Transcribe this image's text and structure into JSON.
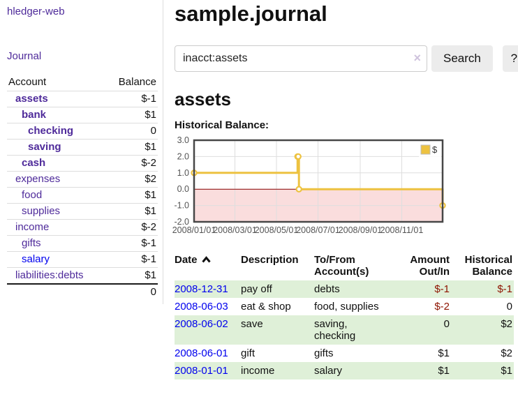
{
  "app": {
    "brand": "hledger-web",
    "nav": {
      "journal": "Journal"
    }
  },
  "sidebar": {
    "headers": {
      "account": "Account",
      "balance": "Balance"
    },
    "accounts": [
      {
        "name": "assets",
        "indent": 0,
        "bold": true,
        "balance": "$-1",
        "balance_color": "negative"
      },
      {
        "name": "bank",
        "indent": 1,
        "bold": true,
        "balance": "$1",
        "balance_color": "normal"
      },
      {
        "name": "checking",
        "indent": 2,
        "bold": true,
        "balance": "0",
        "balance_color": "normal"
      },
      {
        "name": "saving",
        "indent": 2,
        "bold": true,
        "balance": "$1",
        "balance_color": "normal"
      },
      {
        "name": "cash",
        "indent": 1,
        "bold": true,
        "balance": "$-2",
        "balance_color": "negative"
      },
      {
        "name": "expenses",
        "indent": 0,
        "bold": false,
        "balance": "$2",
        "balance_color": "normal"
      },
      {
        "name": "food",
        "indent": 1,
        "bold": false,
        "balance": "$1",
        "balance_color": "normal"
      },
      {
        "name": "supplies",
        "indent": 1,
        "bold": false,
        "balance": "$1",
        "balance_color": "normal"
      },
      {
        "name": "income",
        "indent": 0,
        "bold": false,
        "balance": "$-2",
        "balance_color": "negative-muted"
      },
      {
        "name": "gifts",
        "indent": 1,
        "bold": false,
        "balance": "$-1",
        "balance_color": "negative-muted"
      },
      {
        "name": "salary",
        "indent": 1,
        "bold": false,
        "balance": "$-1",
        "balance_color": "negative-muted",
        "link_color": "blue"
      },
      {
        "name": "liabilities:debts",
        "indent": 0,
        "bold": false,
        "balance": "$1",
        "balance_color": "normal"
      }
    ],
    "total": "0"
  },
  "header": {
    "title": "sample.journal"
  },
  "search": {
    "value": "inacct:assets",
    "clear_icon": "×",
    "search_button": "Search",
    "help_button": "?"
  },
  "account_page": {
    "title": "assets",
    "chart_label": "Historical Balance:"
  },
  "chart_data": {
    "type": "line",
    "step": true,
    "title": "Historical Balance",
    "series": [
      {
        "name": "$",
        "x": [
          "2008-01-01",
          "2008-06-01",
          "2008-06-02",
          "2008-06-03",
          "2008-12-31"
        ],
        "values": [
          1,
          2,
          2,
          0,
          -1
        ]
      }
    ],
    "x_range": [
      "2008-01-01",
      "2008-12-31"
    ],
    "ylim": [
      -2,
      3
    ],
    "yticks": [
      "3.0",
      "2.0",
      "1.0",
      "0.0",
      "-1.0",
      "-2.0"
    ],
    "xticks": [
      "2008/01/01",
      "2008/03/01",
      "2008/05/01",
      "2008/07/01",
      "2008/09/01",
      "2008/11/01"
    ],
    "legend": [
      {
        "label": "$",
        "color": "#edc240"
      }
    ],
    "legend_position": "top-right",
    "grid": true,
    "colors": {
      "line": "#edc240",
      "marker_fill": "#ffffff",
      "plot_border": "#474747",
      "gridline": "#dedede",
      "axis_text": "#545454",
      "negative_region": "#fadddd",
      "zero_line": "#8b0000"
    }
  },
  "register": {
    "headers": [
      {
        "label": "Date",
        "sortable": true
      },
      {
        "label": "Description"
      },
      {
        "label": "To/From Account(s)"
      },
      {
        "label": "Amount Out/In"
      },
      {
        "label": "Historical Balance"
      }
    ],
    "rows": [
      {
        "date": "2008-12-31",
        "description": "pay off",
        "accounts": "debts",
        "amount": "$-1",
        "balance": "$-1"
      },
      {
        "date": "2008-06-03",
        "description": "eat & shop",
        "accounts": "food, supplies",
        "amount": "$-2",
        "balance": "0"
      },
      {
        "date": "2008-06-02",
        "description": "save",
        "accounts": "saving, checking",
        "amount": "0",
        "balance": "$2"
      },
      {
        "date": "2008-06-01",
        "description": "gift",
        "accounts": "gifts",
        "amount": "$1",
        "balance": "$2"
      },
      {
        "date": "2008-01-01",
        "description": "income",
        "accounts": "salary",
        "amount": "$1",
        "balance": "$1"
      }
    ]
  }
}
